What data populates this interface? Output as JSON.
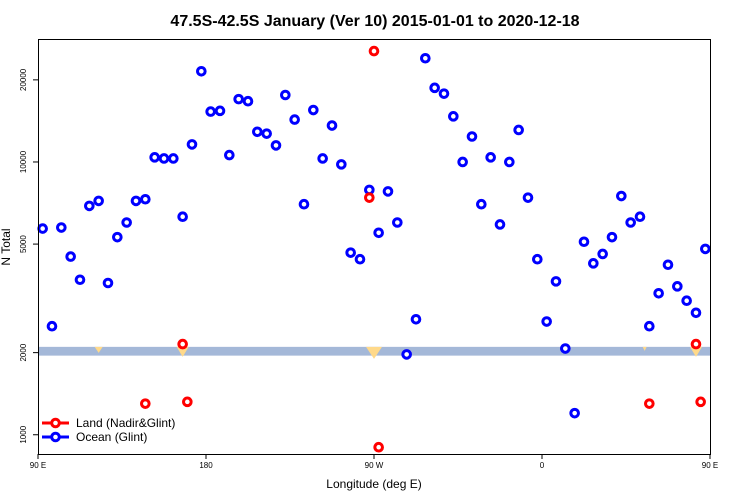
{
  "chart_data": {
    "type": "scatter",
    "title": "47.5S-42.5S January (Ver 10)   2015-01-01 to 2020-12-18",
    "xlabel": "Longitude (deg E)",
    "ylabel": "N Total",
    "x_axis": {
      "lim": [
        90,
        450
      ],
      "ticks": [
        90,
        180,
        270,
        360,
        450
      ],
      "tick_labels": [
        "90 E",
        "180",
        "90 W",
        "0",
        "90 E"
      ],
      "unit": "deg E (continuous from 90 E)"
    },
    "y_axis": {
      "scale": "log",
      "lim": [
        850,
        28000
      ],
      "ticks": [
        1000,
        2000,
        5000,
        10000,
        20000
      ],
      "tick_labels": [
        "1000",
        "2000",
        "5000",
        "10000",
        "20000"
      ]
    },
    "reference_band": {
      "y_range": [
        1950,
        2100
      ],
      "color": "#a4b8d8"
    },
    "legend": {
      "position": "bottom-left"
    },
    "colors": {
      "land": "#ff0000",
      "ocean": "#0000ff",
      "band": "#a4b8d8",
      "highlight": "#ffd98a"
    },
    "series": [
      {
        "name": "Land (Nadir&Glint)",
        "color": "#ff0000",
        "points": [
          {
            "x": 147.5,
            "y": 1300
          },
          {
            "x": 167.5,
            "y": 2150
          },
          {
            "x": 170,
            "y": 1320
          },
          {
            "x": 267.5,
            "y": 7400
          },
          {
            "x": 270,
            "y": 25500
          },
          {
            "x": 272.5,
            "y": 900
          },
          {
            "x": 417.5,
            "y": 1300
          },
          {
            "x": 442.5,
            "y": 2150
          },
          {
            "x": 445,
            "y": 1320
          }
        ]
      },
      {
        "name": "Ocean (Glint)",
        "color": "#0000ff",
        "points": [
          {
            "x": 92.5,
            "y": 5700
          },
          {
            "x": 97.5,
            "y": 2500
          },
          {
            "x": 102.5,
            "y": 5750
          },
          {
            "x": 107.5,
            "y": 4500
          },
          {
            "x": 112.5,
            "y": 3700
          },
          {
            "x": 117.5,
            "y": 6900
          },
          {
            "x": 122.5,
            "y": 7200
          },
          {
            "x": 127.5,
            "y": 3600
          },
          {
            "x": 132.5,
            "y": 5300
          },
          {
            "x": 137.5,
            "y": 6000
          },
          {
            "x": 142.5,
            "y": 7200
          },
          {
            "x": 147.5,
            "y": 7300
          },
          {
            "x": 152.5,
            "y": 10400
          },
          {
            "x": 157.5,
            "y": 10300
          },
          {
            "x": 162.5,
            "y": 10300
          },
          {
            "x": 167.5,
            "y": 6300
          },
          {
            "x": 172.5,
            "y": 11600
          },
          {
            "x": 177.5,
            "y": 21500
          },
          {
            "x": 182.5,
            "y": 15300
          },
          {
            "x": 187.5,
            "y": 15400
          },
          {
            "x": 192.5,
            "y": 10600
          },
          {
            "x": 197.5,
            "y": 17000
          },
          {
            "x": 202.5,
            "y": 16700
          },
          {
            "x": 207.5,
            "y": 12900
          },
          {
            "x": 212.5,
            "y": 12700
          },
          {
            "x": 217.5,
            "y": 11500
          },
          {
            "x": 222.5,
            "y": 17600
          },
          {
            "x": 227.5,
            "y": 14300
          },
          {
            "x": 232.5,
            "y": 7000
          },
          {
            "x": 237.5,
            "y": 15500
          },
          {
            "x": 242.5,
            "y": 10300
          },
          {
            "x": 247.5,
            "y": 13600
          },
          {
            "x": 252.5,
            "y": 9800
          },
          {
            "x": 257.5,
            "y": 4650
          },
          {
            "x": 262.5,
            "y": 4400
          },
          {
            "x": 267.5,
            "y": 7900
          },
          {
            "x": 272.5,
            "y": 5500
          },
          {
            "x": 277.5,
            "y": 7800
          },
          {
            "x": 282.5,
            "y": 6000
          },
          {
            "x": 287.5,
            "y": 1970
          },
          {
            "x": 292.5,
            "y": 2650
          },
          {
            "x": 297.5,
            "y": 24000
          },
          {
            "x": 302.5,
            "y": 18700
          },
          {
            "x": 307.5,
            "y": 17800
          },
          {
            "x": 312.5,
            "y": 14700
          },
          {
            "x": 317.5,
            "y": 10000
          },
          {
            "x": 322.5,
            "y": 12400
          },
          {
            "x": 327.5,
            "y": 7000
          },
          {
            "x": 332.5,
            "y": 10400
          },
          {
            "x": 337.5,
            "y": 5900
          },
          {
            "x": 342.5,
            "y": 10000
          },
          {
            "x": 347.5,
            "y": 13100
          },
          {
            "x": 352.5,
            "y": 7400
          },
          {
            "x": 357.5,
            "y": 4400
          },
          {
            "x": 362.5,
            "y": 2600
          },
          {
            "x": 367.5,
            "y": 3650
          },
          {
            "x": 372.5,
            "y": 2070
          },
          {
            "x": 377.5,
            "y": 1200
          },
          {
            "x": 382.5,
            "y": 5100
          },
          {
            "x": 387.5,
            "y": 4250
          },
          {
            "x": 392.5,
            "y": 4600
          },
          {
            "x": 397.5,
            "y": 5300
          },
          {
            "x": 402.5,
            "y": 7500
          },
          {
            "x": 407.5,
            "y": 6000
          },
          {
            "x": 412.5,
            "y": 6300
          },
          {
            "x": 417.5,
            "y": 2500
          },
          {
            "x": 422.5,
            "y": 3300
          },
          {
            "x": 427.5,
            "y": 4200
          },
          {
            "x": 432.5,
            "y": 3500
          },
          {
            "x": 437.5,
            "y": 3100
          },
          {
            "x": 442.5,
            "y": 2800
          },
          {
            "x": 447.5,
            "y": 4800
          }
        ]
      }
    ]
  }
}
